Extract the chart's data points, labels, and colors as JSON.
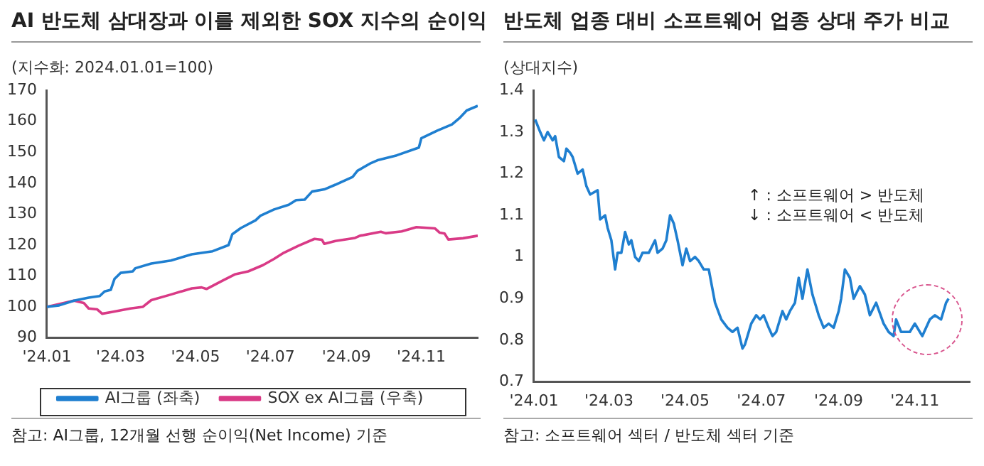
{
  "chart_data": [
    {
      "type": "line",
      "title": "AI 반도체 삼대장과 이를 제외한 SOX 지수의 순이익",
      "ylabel": "(지수화: 2024.01.01=100)",
      "marker": "none",
      "legend": "bottom",
      "xlim": [
        "2024-01-01",
        "2024-12-17"
      ],
      "xticks": [
        {
          "value": "2024-01-01",
          "label": "'24.01"
        },
        {
          "value": "2024-03-01",
          "label": "'24.03"
        },
        {
          "value": "2024-05-01",
          "label": "'24.05"
        },
        {
          "value": "2024-07-01",
          "label": "'24.07"
        },
        {
          "value": "2024-09-01",
          "label": "'24.09"
        },
        {
          "value": "2024-11-01",
          "label": "'24.11"
        }
      ],
      "ylim": [
        90,
        170
      ],
      "yticks": [
        90,
        100,
        110,
        120,
        130,
        140,
        150,
        160,
        170
      ],
      "series": [
        {
          "name": "AI그룹 (좌축)",
          "color": "#1f7fd0",
          "x": [
            "2024-01-01",
            "2024-01-11",
            "2024-01-23",
            "2024-02-04",
            "2024-02-13",
            "2024-02-17",
            "2024-02-22",
            "2024-02-25",
            "2024-03-01",
            "2024-03-11",
            "2024-03-13",
            "2024-03-26",
            "2024-04-11",
            "2024-04-28",
            "2024-05-15",
            "2024-05-28",
            "2024-05-31",
            "2024-06-07",
            "2024-06-19",
            "2024-06-23",
            "2024-07-04",
            "2024-07-16",
            "2024-07-22",
            "2024-07-29",
            "2024-08-04",
            "2024-08-14",
            "2024-08-23",
            "2024-09-06",
            "2024-09-10",
            "2024-09-21",
            "2024-09-27",
            "2024-10-12",
            "2024-10-30",
            "2024-11-01",
            "2024-11-14",
            "2024-11-26",
            "2024-12-02",
            "2024-12-08",
            "2024-12-17"
          ],
          "values": [
            100,
            100.5,
            102,
            103,
            103.5,
            105,
            105.5,
            109,
            111,
            111.5,
            112.5,
            114,
            115,
            117,
            118,
            120,
            123.5,
            125.5,
            128,
            129.5,
            131.5,
            133,
            134.5,
            134.7,
            137.3,
            138,
            139.5,
            142,
            144,
            146.5,
            147.5,
            149,
            151.5,
            154.5,
            157,
            159,
            161,
            163.5,
            165
          ]
        },
        {
          "name": "SOX ex AI그룹 (우축)",
          "color": "#d93a86",
          "x": [
            "2024-01-01",
            "2024-01-23",
            "2024-01-31",
            "2024-02-04",
            "2024-02-11",
            "2024-02-15",
            "2024-02-22",
            "2024-03-09",
            "2024-03-19",
            "2024-03-26",
            "2024-04-11",
            "2024-04-28",
            "2024-05-06",
            "2024-05-10",
            "2024-05-23",
            "2024-06-02",
            "2024-06-13",
            "2024-06-25",
            "2024-07-04",
            "2024-07-12",
            "2024-07-24",
            "2024-08-06",
            "2024-08-12",
            "2024-08-14",
            "2024-08-23",
            "2024-09-08",
            "2024-09-12",
            "2024-09-29",
            "2024-10-03",
            "2024-10-16",
            "2024-10-28",
            "2024-11-12",
            "2024-11-16",
            "2024-11-20",
            "2024-11-23",
            "2024-12-05",
            "2024-12-17"
          ],
          "values": [
            100,
            102,
            101.3,
            99.5,
            99.2,
            97.8,
            98.3,
            99.5,
            100,
            102.2,
            104,
            106,
            106.3,
            105.8,
            108.5,
            110.5,
            111.5,
            113.5,
            115.5,
            117.5,
            119.8,
            122,
            121.7,
            120.4,
            121.3,
            122.3,
            123,
            124.3,
            123.8,
            124.4,
            125.8,
            125.4,
            124,
            123.7,
            121.8,
            122.2,
            123
          ]
        }
      ],
      "annotations": [
        "참고: AI그룹, 12개월 선행 순이익(Net Income) 기준"
      ]
    },
    {
      "type": "line",
      "title": "반도체 업종 대비 소프트웨어 업종 상대 주가 비교",
      "ylabel": "(상대지수)",
      "marker": "none",
      "xlim": [
        "2024-01-01",
        "2024-12-15"
      ],
      "xticks": [
        {
          "value": "2024-01-01",
          "label": "'24.01"
        },
        {
          "value": "2024-03-01",
          "label": "'24.03"
        },
        {
          "value": "2024-05-01",
          "label": "'24.05"
        },
        {
          "value": "2024-07-01",
          "label": "'24.07"
        },
        {
          "value": "2024-09-01",
          "label": "'24.09"
        },
        {
          "value": "2024-11-01",
          "label": "'24.11"
        }
      ],
      "ylim": [
        0.7,
        1.4
      ],
      "yticks": [
        0.7,
        0.8,
        0.9,
        1.0,
        1.1,
        1.2,
        1.3,
        1.4
      ],
      "series": [
        {
          "color": "#1f7fd0",
          "x": [
            "2024-01-02",
            "2024-01-06",
            "2024-01-09",
            "2024-01-12",
            "2024-01-16",
            "2024-01-18",
            "2024-01-21",
            "2024-01-25",
            "2024-01-27",
            "2024-01-30",
            "2024-02-01",
            "2024-02-05",
            "2024-02-09",
            "2024-02-12",
            "2024-02-15",
            "2024-02-21",
            "2024-02-23",
            "2024-02-27",
            "2024-02-29",
            "2024-03-03",
            "2024-03-06",
            "2024-03-08",
            "2024-03-11",
            "2024-03-14",
            "2024-03-17",
            "2024-03-19",
            "2024-03-22",
            "2024-03-25",
            "2024-03-28",
            "2024-04-02",
            "2024-04-07",
            "2024-04-09",
            "2024-04-13",
            "2024-04-16",
            "2024-04-19",
            "2024-04-22",
            "2024-04-25",
            "2024-04-29",
            "2024-05-02",
            "2024-05-05",
            "2024-05-09",
            "2024-05-12",
            "2024-05-16",
            "2024-05-20",
            "2024-05-25",
            "2024-05-30",
            "2024-06-04",
            "2024-06-08",
            "2024-06-12",
            "2024-06-16",
            "2024-06-18",
            "2024-06-23",
            "2024-06-27",
            "2024-06-30",
            "2024-07-03",
            "2024-07-07",
            "2024-07-10",
            "2024-07-13",
            "2024-07-18",
            "2024-07-21",
            "2024-07-24",
            "2024-07-28",
            "2024-07-31",
            "2024-08-03",
            "2024-08-07",
            "2024-08-11",
            "2024-08-16",
            "2024-08-20",
            "2024-08-24",
            "2024-08-28",
            "2024-09-01",
            "2024-09-03",
            "2024-09-06",
            "2024-09-10",
            "2024-09-13",
            "2024-09-18",
            "2024-09-22",
            "2024-09-26",
            "2024-10-01",
            "2024-10-07",
            "2024-10-11",
            "2024-10-15",
            "2024-10-17",
            "2024-10-21",
            "2024-10-28",
            "2024-11-01",
            "2024-11-07",
            "2024-11-13",
            "2024-11-17",
            "2024-11-22",
            "2024-11-26",
            "2024-11-28"
          ],
          "values": [
            1.33,
            1.3,
            1.28,
            1.3,
            1.28,
            1.29,
            1.24,
            1.23,
            1.26,
            1.25,
            1.24,
            1.2,
            1.21,
            1.17,
            1.15,
            1.16,
            1.09,
            1.1,
            1.07,
            1.04,
            0.97,
            1.01,
            1.01,
            1.06,
            1.03,
            1.04,
            1.0,
            0.99,
            1.01,
            1.01,
            1.04,
            1.01,
            1.02,
            1.04,
            1.1,
            1.08,
            1.04,
            0.98,
            1.02,
            0.99,
            1.0,
            0.99,
            0.97,
            0.97,
            0.89,
            0.85,
            0.83,
            0.82,
            0.83,
            0.78,
            0.79,
            0.84,
            0.86,
            0.85,
            0.86,
            0.83,
            0.81,
            0.82,
            0.87,
            0.85,
            0.87,
            0.89,
            0.95,
            0.9,
            0.97,
            0.91,
            0.86,
            0.83,
            0.84,
            0.83,
            0.87,
            0.9,
            0.97,
            0.95,
            0.9,
            0.93,
            0.91,
            0.86,
            0.89,
            0.84,
            0.82,
            0.81,
            0.85,
            0.82,
            0.82,
            0.84,
            0.81,
            0.85,
            0.86,
            0.85,
            0.89,
            0.9
          ]
        }
      ],
      "annotations": [
        "↑ : 소프트웨어 > 반도체",
        "↓ : 소프트웨어 < 반도체",
        "참고: 소프트웨어 섹터 / 반도체 섹터 기준"
      ]
    }
  ]
}
